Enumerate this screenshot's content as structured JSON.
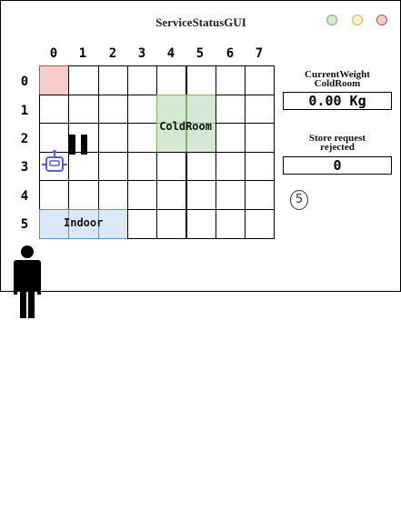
{
  "window": {
    "title": "ServiceStatusGUI"
  },
  "controls": {
    "green": "#a8d8a0",
    "yellow": "#f6e5a0",
    "red": "#f2a5a5"
  },
  "grid": {
    "columns": [
      "0",
      "1",
      "2",
      "3",
      "4",
      "5",
      "6",
      "7"
    ],
    "rows": [
      "0",
      "1",
      "2",
      "3",
      "4",
      "5"
    ],
    "home_color": "#f6cccc",
    "coldroom": {
      "label": "ColdRoom",
      "color": "#d6e8d0"
    },
    "indoor": {
      "label": "Indoor",
      "color": "#dae8fc"
    },
    "robot_icon": "robot-icon",
    "pause_icon": "pause-icon"
  },
  "panel": {
    "weight_label_line1": "CurrentWeight",
    "weight_label_line2": "ColdRoom",
    "weight_value": "0.00 Kg",
    "rejected_label_line1": "Store request",
    "rejected_label_line2": "rejected",
    "rejected_value": "0",
    "badge_value": "5"
  },
  "actor_icon": "person-icon"
}
